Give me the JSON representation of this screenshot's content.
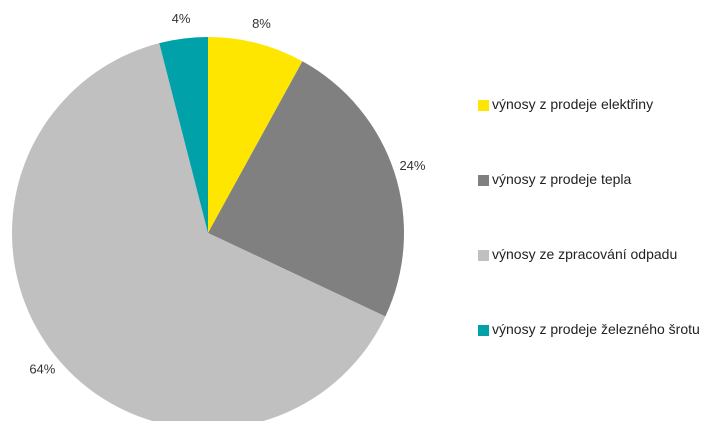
{
  "chart_data": {
    "type": "pie",
    "categories": [
      "výnosy z prodeje elektřiny",
      "výnosy z prodeje tepla",
      "výnosy ze zpracování odpadu",
      "výnosy z prodeje železného šrotu"
    ],
    "values": [
      8,
      24,
      64,
      4
    ],
    "value_labels": [
      "8%",
      "24%",
      "64%",
      "4%"
    ],
    "colors": [
      "#ffe600",
      "#808080",
      "#c0c0c0",
      "#00a1a9"
    ],
    "legend": "right"
  }
}
